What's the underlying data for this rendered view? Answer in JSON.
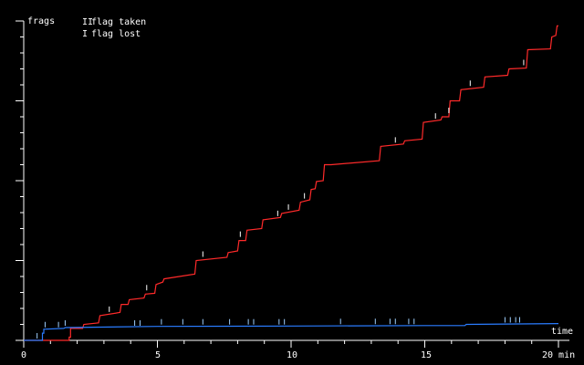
{
  "chart_data": {
    "type": "line",
    "ylabel": "frags",
    "xlabel": "time",
    "x_unit": "min",
    "xlim": [
      0,
      20
    ],
    "ylim": [
      0,
      40
    ],
    "x_ticks": [
      0,
      5,
      10,
      15,
      20
    ],
    "x_tick_labels": [
      "0",
      "5",
      "10",
      "15",
      "20 min"
    ],
    "y_minor_ticks": [
      2,
      4,
      6,
      8,
      12,
      14,
      16,
      18,
      22,
      24,
      26,
      28,
      32,
      34,
      36,
      38
    ],
    "y_major_ticks": [
      0,
      10,
      20,
      30,
      40
    ],
    "legend": [
      {
        "symbol": "II",
        "label": "flag taken"
      },
      {
        "symbol": "I",
        "label": "flag lost"
      }
    ],
    "series": [
      {
        "color": "#ff2a2a",
        "points": [
          [
            0,
            0
          ],
          [
            1.7,
            0
          ],
          [
            1.7,
            0.4
          ],
          [
            1.75,
            0.4
          ],
          [
            1.75,
            1.5
          ],
          [
            2.2,
            1.5
          ],
          [
            2.25,
            2.0
          ],
          [
            2.8,
            2.2
          ],
          [
            2.85,
            3.1
          ],
          [
            3.6,
            3.5
          ],
          [
            3.65,
            4.5
          ],
          [
            3.9,
            4.5
          ],
          [
            3.95,
            5.1
          ],
          [
            4.5,
            5.3
          ],
          [
            4.55,
            5.8
          ],
          [
            4.9,
            5.9
          ],
          [
            4.95,
            7.0
          ],
          [
            5.2,
            7.3
          ],
          [
            5.25,
            7.7
          ],
          [
            6.4,
            8.3
          ],
          [
            6.45,
            10.0
          ],
          [
            7.6,
            10.4
          ],
          [
            7.65,
            11.0
          ],
          [
            8.0,
            11.2
          ],
          [
            8.05,
            12.5
          ],
          [
            8.3,
            12.5
          ],
          [
            8.35,
            13.8
          ],
          [
            8.9,
            14.0
          ],
          [
            8.95,
            15.1
          ],
          [
            9.6,
            15.4
          ],
          [
            9.65,
            15.9
          ],
          [
            10.3,
            16.3
          ],
          [
            10.35,
            17.3
          ],
          [
            10.7,
            17.6
          ],
          [
            10.75,
            18.9
          ],
          [
            10.9,
            19.0
          ],
          [
            10.95,
            19.9
          ],
          [
            11.2,
            20.0
          ],
          [
            11.25,
            22.0
          ],
          [
            11.5,
            22.0
          ],
          [
            13.3,
            22.5
          ],
          [
            13.35,
            24.3
          ],
          [
            14.2,
            24.6
          ],
          [
            14.25,
            25.0
          ],
          [
            14.9,
            25.2
          ],
          [
            14.95,
            27.3
          ],
          [
            15.6,
            27.6
          ],
          [
            15.65,
            28.0
          ],
          [
            15.9,
            28.0
          ],
          [
            15.95,
            30.0
          ],
          [
            16.3,
            30.0
          ],
          [
            16.35,
            31.4
          ],
          [
            17.2,
            31.7
          ],
          [
            17.25,
            33.0
          ],
          [
            18.1,
            33.2
          ],
          [
            18.15,
            34.0
          ],
          [
            18.8,
            34.1
          ],
          [
            18.85,
            36.4
          ],
          [
            19.7,
            36.5
          ],
          [
            19.75,
            38.0
          ],
          [
            19.9,
            38.2
          ],
          [
            19.95,
            39.4
          ],
          [
            20,
            39.4
          ]
        ],
        "flag_lost_marks": [
          3.2,
          4.6,
          6.7,
          8.1,
          9.5,
          9.9,
          10.5,
          13.9,
          15.4,
          15.9,
          16.7,
          18.7
        ]
      },
      {
        "color": "#2a7cff",
        "points": [
          [
            0,
            0
          ],
          [
            0.7,
            0
          ],
          [
            0.7,
            0.9
          ],
          [
            0.75,
            0.9
          ],
          [
            0.75,
            1.4
          ],
          [
            1.5,
            1.5
          ],
          [
            1.55,
            1.6
          ],
          [
            5,
            1.75
          ],
          [
            10,
            1.8
          ],
          [
            15,
            1.85
          ],
          [
            16.5,
            1.85
          ],
          [
            16.55,
            2.0
          ],
          [
            20,
            2.1
          ]
        ],
        "flag_marks": [
          0.5,
          0.8,
          1.3,
          1.55,
          4.15,
          4.35,
          5.15,
          5.95,
          6.7,
          7.7,
          8.4,
          8.6,
          9.55,
          9.75,
          11.85,
          13.15,
          13.7,
          13.9,
          14.4,
          14.6,
          18.0,
          18.2,
          18.4,
          18.55
        ]
      }
    ]
  }
}
